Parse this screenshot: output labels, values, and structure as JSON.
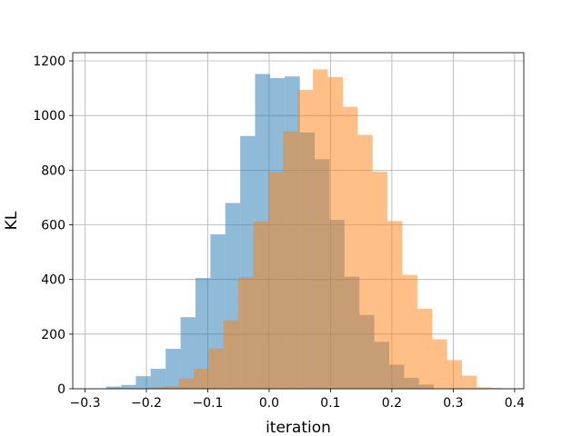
{
  "chart_data": {
    "type": "histogram",
    "title": "",
    "xlabel": "iteration",
    "ylabel": "KL",
    "xlim": [
      -0.32,
      0.415
    ],
    "ylim": [
      0,
      1230
    ],
    "xticks": [
      -0.3,
      -0.2,
      -0.1,
      0.0,
      0.1,
      0.2,
      0.3,
      0.4
    ],
    "xtick_labels": [
      "−0.3",
      "−0.2",
      "−0.1",
      "0.0",
      "0.1",
      "0.2",
      "0.3",
      "0.4"
    ],
    "yticks": [
      0,
      200,
      400,
      600,
      800,
      1000,
      1200
    ],
    "ytick_labels": [
      "0",
      "200",
      "400",
      "600",
      "800",
      "1000",
      "1200"
    ],
    "grid": true,
    "legend": "none",
    "series": [
      {
        "color": "#1f77b4",
        "opacity": 0.5,
        "bin_edges": [
          -0.2657,
          -0.2414,
          -0.2172,
          -0.1929,
          -0.1686,
          -0.1443,
          -0.12,
          -0.0957,
          -0.0714,
          -0.0471,
          -0.0229,
          0.0014,
          0.0257,
          0.05,
          0.0743,
          0.0986,
          0.1229,
          0.1471,
          0.1714,
          0.1957,
          0.22,
          0.2443,
          0.2686
        ],
        "counts": [
          8,
          14,
          46,
          73,
          146,
          262,
          405,
          565,
          680,
          925,
          1152,
          1137,
          1143,
          938,
          840,
          618,
          410,
          270,
          172,
          88,
          40,
          15
        ]
      },
      {
        "color": "#ff7f0e",
        "opacity": 0.5,
        "bin_edges": [
          -0.1957,
          -0.1714,
          -0.1471,
          -0.1229,
          -0.0986,
          -0.0743,
          -0.05,
          -0.0257,
          -0.0014,
          0.0229,
          0.0471,
          0.0714,
          0.0957,
          0.12,
          0.1443,
          0.1686,
          0.1929,
          0.2171,
          0.2414,
          0.2657,
          0.29,
          0.3143,
          0.3386,
          0.3629,
          0.38
        ],
        "counts": [
          5,
          10,
          38,
          73,
          148,
          251,
          408,
          612,
          793,
          942,
          1094,
          1169,
          1141,
          1032,
          929,
          795,
          614,
          417,
          293,
          181,
          105,
          48,
          5,
          3
        ]
      }
    ]
  }
}
